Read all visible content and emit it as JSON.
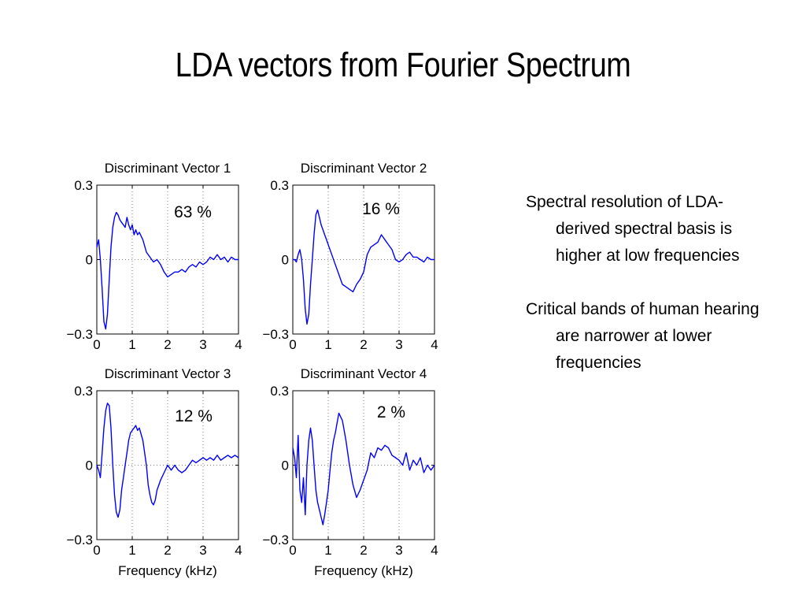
{
  "slide": {
    "title": "LDA vectors from Fourier Spectrum",
    "bullets": [
      "Spectral resolution of LDA-derived spectral basis is higher at low frequencies",
      "Critical bands of human hearing are narrower at lower frequencies"
    ]
  },
  "colors": {
    "line": "#0000ff",
    "grid": "#808080",
    "axis": "#000000"
  },
  "chart_data": [
    {
      "type": "line",
      "title": "Discriminant Vector 1",
      "annotation": "63 %",
      "xlabel": "",
      "ylabel": "",
      "xlim": [
        0,
        4
      ],
      "ylim": [
        -0.3,
        0.3
      ],
      "xticks": [
        "0",
        "1",
        "2",
        "3",
        "4"
      ],
      "yticks": [
        "0.3",
        "0",
        "−0.3"
      ],
      "grid": true,
      "x": [
        0,
        0.05,
        0.1,
        0.15,
        0.2,
        0.25,
        0.3,
        0.35,
        0.4,
        0.45,
        0.5,
        0.55,
        0.6,
        0.65,
        0.7,
        0.75,
        0.8,
        0.85,
        0.9,
        0.95,
        1.0,
        1.05,
        1.1,
        1.15,
        1.2,
        1.3,
        1.4,
        1.5,
        1.6,
        1.7,
        1.8,
        1.9,
        2.0,
        2.1,
        2.2,
        2.3,
        2.4,
        2.5,
        2.6,
        2.7,
        2.8,
        2.9,
        3.0,
        3.1,
        3.2,
        3.3,
        3.4,
        3.5,
        3.6,
        3.7,
        3.8,
        3.9,
        4.0
      ],
      "y": [
        0.05,
        0.08,
        0.0,
        -0.12,
        -0.25,
        -0.28,
        -0.22,
        -0.08,
        0.05,
        0.13,
        0.17,
        0.19,
        0.18,
        0.16,
        0.15,
        0.14,
        0.13,
        0.17,
        0.14,
        0.12,
        0.14,
        0.1,
        0.12,
        0.1,
        0.11,
        0.08,
        0.03,
        0.01,
        -0.01,
        0.0,
        -0.02,
        -0.05,
        -0.07,
        -0.06,
        -0.05,
        -0.05,
        -0.04,
        -0.05,
        -0.03,
        -0.02,
        -0.03,
        -0.01,
        -0.02,
        -0.01,
        0.01,
        0.0,
        0.02,
        0.0,
        0.01,
        -0.01,
        0.01,
        0.0,
        0.0
      ]
    },
    {
      "type": "line",
      "title": "Discriminant Vector 2",
      "annotation": "16 %",
      "xlabel": "",
      "ylabel": "",
      "xlim": [
        0,
        4
      ],
      "ylim": [
        -0.3,
        0.3
      ],
      "xticks": [
        "0",
        "1",
        "2",
        "3",
        "4"
      ],
      "yticks": [
        "0.3",
        "0",
        "−0.3"
      ],
      "grid": true,
      "x": [
        0,
        0.05,
        0.1,
        0.15,
        0.2,
        0.25,
        0.3,
        0.35,
        0.4,
        0.45,
        0.5,
        0.55,
        0.6,
        0.65,
        0.7,
        0.75,
        0.8,
        0.85,
        0.9,
        0.95,
        1.0,
        1.1,
        1.2,
        1.3,
        1.4,
        1.5,
        1.6,
        1.7,
        1.8,
        1.9,
        2.0,
        2.1,
        2.2,
        2.3,
        2.4,
        2.5,
        2.6,
        2.7,
        2.8,
        2.9,
        3.0,
        3.1,
        3.2,
        3.3,
        3.4,
        3.5,
        3.6,
        3.7,
        3.8,
        3.9,
        4.0
      ],
      "y": [
        0.0,
        0.0,
        -0.01,
        0.02,
        0.04,
        0.0,
        -0.08,
        -0.2,
        -0.26,
        -0.22,
        -0.1,
        0.0,
        0.1,
        0.18,
        0.2,
        0.17,
        0.14,
        0.12,
        0.1,
        0.08,
        0.06,
        0.02,
        -0.02,
        -0.06,
        -0.1,
        -0.11,
        -0.12,
        -0.13,
        -0.1,
        -0.08,
        -0.05,
        0.02,
        0.05,
        0.06,
        0.07,
        0.1,
        0.08,
        0.06,
        0.04,
        0.0,
        -0.01,
        0.0,
        0.02,
        0.03,
        0.01,
        0.01,
        0.0,
        -0.01,
        0.01,
        0.0,
        0.0
      ]
    },
    {
      "type": "line",
      "title": "Discriminant Vector 3",
      "annotation": "12 %",
      "xlabel": "Frequency (kHz)",
      "ylabel": "",
      "xlim": [
        0,
        4
      ],
      "ylim": [
        -0.3,
        0.3
      ],
      "xticks": [
        "0",
        "1",
        "2",
        "3",
        "4"
      ],
      "yticks": [
        "0.3",
        "0",
        "−0.3"
      ],
      "grid": true,
      "x": [
        0,
        0.05,
        0.1,
        0.15,
        0.2,
        0.25,
        0.3,
        0.35,
        0.4,
        0.45,
        0.5,
        0.55,
        0.6,
        0.65,
        0.7,
        0.75,
        0.8,
        0.85,
        0.9,
        0.95,
        1.0,
        1.05,
        1.1,
        1.15,
        1.2,
        1.3,
        1.4,
        1.45,
        1.5,
        1.55,
        1.6,
        1.65,
        1.7,
        1.75,
        1.8,
        1.9,
        2.0,
        2.1,
        2.2,
        2.3,
        2.4,
        2.5,
        2.6,
        2.7,
        2.8,
        2.9,
        3.0,
        3.1,
        3.2,
        3.3,
        3.4,
        3.5,
        3.6,
        3.7,
        3.8,
        3.9,
        4.0
      ],
      "y": [
        0.0,
        -0.02,
        -0.05,
        0.05,
        0.15,
        0.22,
        0.25,
        0.24,
        0.15,
        0.0,
        -0.12,
        -0.19,
        -0.21,
        -0.18,
        -0.1,
        -0.05,
        0.0,
        0.05,
        0.1,
        0.13,
        0.14,
        0.15,
        0.16,
        0.14,
        0.15,
        0.1,
        0.0,
        -0.08,
        -0.12,
        -0.15,
        -0.16,
        -0.14,
        -0.1,
        -0.08,
        -0.06,
        -0.03,
        0.0,
        -0.02,
        0.0,
        -0.02,
        -0.03,
        -0.02,
        0.0,
        0.02,
        0.01,
        0.02,
        0.03,
        0.02,
        0.03,
        0.02,
        0.04,
        0.02,
        0.03,
        0.04,
        0.03,
        0.04,
        0.03
      ]
    },
    {
      "type": "line",
      "title": "Discriminant Vector 4",
      "annotation": "2 %",
      "xlabel": "Frequency (kHz)",
      "ylabel": "",
      "xlim": [
        0,
        4
      ],
      "ylim": [
        -0.3,
        0.3
      ],
      "xticks": [
        "0",
        "1",
        "2",
        "3",
        "4"
      ],
      "yticks": [
        "0.3",
        "0",
        "−0.3"
      ],
      "grid": true,
      "x": [
        0,
        0.05,
        0.1,
        0.15,
        0.2,
        0.25,
        0.3,
        0.35,
        0.4,
        0.45,
        0.5,
        0.55,
        0.6,
        0.65,
        0.7,
        0.75,
        0.8,
        0.85,
        0.9,
        0.95,
        1.0,
        1.05,
        1.1,
        1.15,
        1.2,
        1.3,
        1.4,
        1.5,
        1.6,
        1.7,
        1.8,
        1.9,
        2.0,
        2.1,
        2.2,
        2.3,
        2.4,
        2.5,
        2.6,
        2.7,
        2.8,
        2.9,
        3.0,
        3.1,
        3.2,
        3.3,
        3.4,
        3.5,
        3.6,
        3.7,
        3.8,
        3.9,
        4.0
      ],
      "y": [
        0.07,
        0.03,
        -0.05,
        0.12,
        -0.1,
        -0.15,
        -0.05,
        -0.2,
        0.0,
        0.1,
        0.15,
        0.1,
        0.0,
        -0.1,
        -0.15,
        -0.18,
        -0.21,
        -0.24,
        -0.2,
        -0.15,
        -0.1,
        -0.02,
        0.05,
        0.1,
        0.13,
        0.21,
        0.18,
        0.1,
        0.0,
        -0.08,
        -0.13,
        -0.1,
        -0.06,
        -0.02,
        0.05,
        0.03,
        0.07,
        0.06,
        0.08,
        0.07,
        0.04,
        0.03,
        0.02,
        0.0,
        0.05,
        -0.02,
        0.02,
        0.0,
        0.03,
        -0.03,
        0.0,
        -0.02,
        0.0
      ]
    }
  ]
}
